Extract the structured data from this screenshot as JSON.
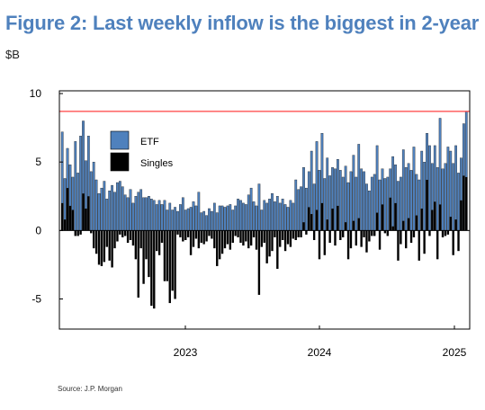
{
  "header": {
    "title": "Figure 2: Last weekly inflow is the biggest in 2-year",
    "unit": "$B"
  },
  "footer": {
    "source": "Source: J.P. Morgan"
  },
  "colors": {
    "etf": "#4f81bd",
    "singles": "#000000",
    "threshold": "#ff4040",
    "title": "#4f81bd"
  },
  "chart_data": {
    "type": "bar",
    "bar_mode": "overlay",
    "x_ticks": [
      "2023",
      "2024",
      "2025"
    ],
    "y_ticks": [
      10,
      5,
      0,
      -5
    ],
    "ylim": [
      -7.2,
      10.2
    ],
    "grid": false,
    "legend_position": "top-left",
    "reference_line": 8.7,
    "series": [
      {
        "name": "ETF",
        "values": [
          7.2,
          3.8,
          6.0,
          4.8,
          3.9,
          6.5,
          4.2,
          6.9,
          8.0,
          5.1,
          6.9,
          4.3,
          5.0,
          3.7,
          2.7,
          3.1,
          3.6,
          2.3,
          2.9,
          3.3,
          2.8,
          3.5,
          3.6,
          3.2,
          2.6,
          2.4,
          3.0,
          2.0,
          2.5,
          2.8,
          3.0,
          2.4,
          2.4,
          2.5,
          2.3,
          2.2,
          1.9,
          2.2,
          1.9,
          2.2,
          1.5,
          2.0,
          1.5,
          1.7,
          1.4,
          1.9,
          2.4,
          1.5,
          1.6,
          1.7,
          2.1,
          1.8,
          2.8,
          1.3,
          1.4,
          1.1,
          1.6,
          1.4,
          2.0,
          1.3,
          1.8,
          1.8,
          1.7,
          1.8,
          1.9,
          1.5,
          1.8,
          2.3,
          2.2,
          2.0,
          1.9,
          2.6,
          3.1,
          2.1,
          1.8,
          3.4,
          1.5,
          2.2,
          2.0,
          2.3,
          2.7,
          2.1,
          2.5,
          2.0,
          2.3,
          1.9,
          1.7,
          2.2,
          2.0,
          3.7,
          3.0,
          3.2,
          4.6,
          3.1,
          4.3,
          5.8,
          3.4,
          6.5,
          4.4,
          7.1,
          3.8,
          5.3,
          4.0,
          4.6,
          4.5,
          5.2,
          4.4,
          3.9,
          4.7,
          3.5,
          4.3,
          5.5,
          3.9,
          6.3,
          4.5,
          4.3,
          3.4,
          2.9,
          3.9,
          4.1,
          6.2,
          3.7,
          4.5,
          3.8,
          3.9,
          4.5,
          5.4,
          4.8,
          3.6,
          3.9,
          5.9,
          4.6,
          4.9,
          4.4,
          6.1,
          4.1,
          3.7,
          5.8,
          5.0,
          7.1,
          6.2,
          4.9,
          6.2,
          4.6,
          8.2,
          4.5,
          4.9,
          6.1,
          5.8,
          4.9,
          6.2,
          4.2,
          5.3,
          7.8,
          8.7
        ]
      },
      {
        "name": "Singles",
        "values": [
          2.0,
          0.8,
          3.1,
          1.8,
          1.5,
          -0.4,
          -0.4,
          -0.3,
          2.7,
          1.6,
          2.5,
          -0.2,
          -1.3,
          -1.7,
          -2.5,
          -2.6,
          -2.3,
          -1.2,
          -2.2,
          -2.7,
          -1.3,
          -0.8,
          -0.3,
          -0.5,
          -0.4,
          -0.9,
          -0.7,
          -1.1,
          -2.1,
          -4.9,
          -1.3,
          -3.9,
          -2.1,
          -3.4,
          -5.5,
          -5.7,
          -1.5,
          -1.8,
          -0.9,
          -3.7,
          -3.7,
          -5.3,
          -4.4,
          -5.0,
          -0.3,
          -0.5,
          -0.8,
          -0.7,
          -0.5,
          -1.8,
          -1.2,
          -0.6,
          -1.3,
          -0.9,
          -1.0,
          -0.8,
          -0.4,
          -0.6,
          -1.3,
          -2.6,
          -2.1,
          -1.7,
          -1.3,
          -1.0,
          -1.4,
          -0.9,
          -0.4,
          -0.5,
          -0.9,
          -1.1,
          -0.8,
          -1.3,
          -1.1,
          -0.5,
          -1.4,
          -4.7,
          -1.2,
          -0.9,
          -2.4,
          -1.9,
          -1.5,
          -0.5,
          -2.8,
          -1.2,
          -0.7,
          -1.5,
          -1.0,
          -1.2,
          -0.6,
          -0.7,
          -0.5,
          -0.5,
          0.6,
          -0.3,
          1.7,
          1.2,
          -0.7,
          1.5,
          -2.1,
          2.0,
          -1.8,
          0.8,
          -0.9,
          1.6,
          -1.1,
          1.8,
          -0.7,
          -0.5,
          0.6,
          -2.1,
          -1.3,
          0.7,
          -1.1,
          0.9,
          -1.2,
          -0.5,
          -1.6,
          -0.8,
          -0.4,
          -0.4,
          1.3,
          -1.4,
          1.9,
          -0.2,
          -0.4,
          2.4,
          0.3,
          2.0,
          -2.2,
          -1.0,
          0.7,
          -1.3,
          0.9,
          -0.9,
          -0.5,
          1.1,
          -2.2,
          1.6,
          -1.7,
          3.7,
          -0.4,
          1.5,
          2.1,
          -2.1,
          1.9,
          -0.5,
          -0.4,
          -0.3,
          1.0,
          -1.8,
          0.8,
          -1.5,
          2.2,
          4.0,
          3.9
        ]
      }
    ]
  }
}
